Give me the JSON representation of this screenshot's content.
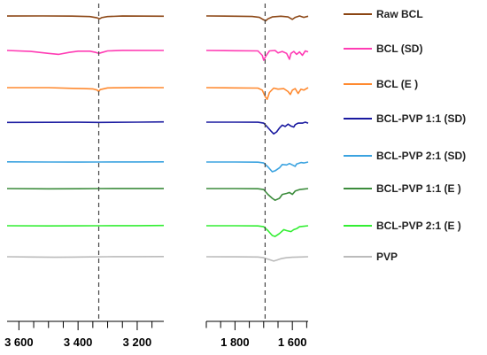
{
  "chart_data": [
    {
      "type": "line",
      "title": "",
      "xlabel": "",
      "ylabel": "",
      "x_reversed": true,
      "xlim": [
        3640,
        3110
      ],
      "x_ticks": [
        {
          "value": 3600,
          "label": "3 600"
        },
        {
          "value": 3400,
          "label": "3 400"
        },
        {
          "value": 3200,
          "label": "3 200"
        }
      ],
      "reference_line": {
        "x": 3330,
        "style": "dashed"
      },
      "grid": false,
      "series": [
        {
          "name": "Raw BCL",
          "color": "#8B4513",
          "points": [
            [
              3640,
              -0.2
            ],
            [
              3520,
              0
            ],
            [
              3420,
              -0.3
            ],
            [
              3360,
              -1.2
            ],
            [
              3335,
              -4
            ],
            [
              3328,
              -6
            ],
            [
              3320,
              -3.5
            ],
            [
              3300,
              -1.2
            ],
            [
              3250,
              -0.2
            ],
            [
              3110,
              -0.5
            ]
          ]
        },
        {
          "name": "BCL (SD)",
          "color": "#FF3CB4",
          "points": [
            [
              3640,
              0
            ],
            [
              3560,
              -2
            ],
            [
              3500,
              -6
            ],
            [
              3465,
              -8
            ],
            [
              3430,
              -4
            ],
            [
              3400,
              -1.5
            ],
            [
              3360,
              -1.5
            ],
            [
              3340,
              -4
            ],
            [
              3330,
              -6
            ],
            [
              3318,
              -4
            ],
            [
              3300,
              -1
            ],
            [
              3250,
              0.2
            ],
            [
              3110,
              0
            ]
          ]
        },
        {
          "name": "BCL (E )",
          "color": "#FF8A30",
          "points": [
            [
              3640,
              0
            ],
            [
              3500,
              0
            ],
            [
              3420,
              -1.5
            ],
            [
              3380,
              -2
            ],
            [
              3350,
              -2.5
            ],
            [
              3335,
              -5
            ],
            [
              3330,
              -8
            ],
            [
              3325,
              -4
            ],
            [
              3300,
              -0.6
            ],
            [
              3200,
              0.2
            ],
            [
              3110,
              0
            ]
          ]
        },
        {
          "name": "BCL-PVP 1:1 (SD)",
          "color": "#1A1AA0",
          "points": [
            [
              3640,
              -0.5
            ],
            [
              3500,
              -0.3
            ],
            [
              3400,
              -0.2
            ],
            [
              3330,
              -0.5
            ],
            [
              3200,
              0
            ],
            [
              3110,
              0.5
            ]
          ]
        },
        {
          "name": "BCL-PVP 2:1 (SD)",
          "color": "#3BA3E0",
          "points": [
            [
              3640,
              0.3
            ],
            [
              3500,
              0
            ],
            [
              3400,
              -0.2
            ],
            [
              3330,
              0
            ],
            [
              3200,
              0.1
            ],
            [
              3110,
              0.3
            ]
          ]
        },
        {
          "name": "BCL-PVP 1:1 (E )",
          "color": "#3C8C3C",
          "points": [
            [
              3640,
              0
            ],
            [
              3500,
              -0.5
            ],
            [
              3400,
              -0.3
            ],
            [
              3330,
              0
            ],
            [
              3200,
              0.2
            ],
            [
              3110,
              0.2
            ]
          ]
        },
        {
          "name": "BCL-PVP 2:1 (E )",
          "color": "#33EE33",
          "points": [
            [
              3640,
              0
            ],
            [
              3500,
              -0.3
            ],
            [
              3400,
              -0.2
            ],
            [
              3330,
              0
            ],
            [
              3200,
              0.2
            ],
            [
              3110,
              0.5
            ]
          ]
        },
        {
          "name": "PVP",
          "color": "#BBBBBB",
          "points": [
            [
              3640,
              0
            ],
            [
              3560,
              -0.6
            ],
            [
              3480,
              -1
            ],
            [
              3420,
              -0.8
            ],
            [
              3360,
              -0.3
            ],
            [
              3300,
              0
            ],
            [
              3200,
              0.2
            ],
            [
              3110,
              0.4
            ]
          ]
        }
      ]
    },
    {
      "type": "line",
      "title": "",
      "xlabel": "",
      "ylabel": "",
      "x_reversed": true,
      "xlim": [
        1900,
        1545
      ],
      "x_ticks": [
        {
          "value": 1800,
          "label": "1 800"
        },
        {
          "value": 1600,
          "label": "1 600"
        }
      ],
      "reference_line": {
        "x": 1695,
        "style": "dashed"
      },
      "grid": false,
      "series": [
        {
          "name": "Raw BCL",
          "color": "#8B4513",
          "points": [
            [
              1900,
              0
            ],
            [
              1800,
              -0.5
            ],
            [
              1740,
              -1
            ],
            [
              1715,
              -3
            ],
            [
              1700,
              -8
            ],
            [
              1693,
              -10
            ],
            [
              1685,
              -6
            ],
            [
              1670,
              -2
            ],
            [
              1640,
              -0.5
            ],
            [
              1615,
              -2
            ],
            [
              1600,
              -7
            ],
            [
              1590,
              -3
            ],
            [
              1575,
              0
            ],
            [
              1560,
              -3
            ],
            [
              1545,
              -0.5
            ]
          ]
        },
        {
          "name": "BCL (SD)",
          "color": "#FF3CB4",
          "points": [
            [
              1900,
              0
            ],
            [
              1800,
              -0.5
            ],
            [
              1720,
              -1
            ],
            [
              1705,
              -10
            ],
            [
              1700,
              -20
            ],
            [
              1693,
              -12
            ],
            [
              1680,
              -1
            ],
            [
              1660,
              0
            ],
            [
              1650,
              -5
            ],
            [
              1635,
              -2
            ],
            [
              1620,
              -6
            ],
            [
              1610,
              -18
            ],
            [
              1605,
              -6
            ],
            [
              1595,
              -2
            ],
            [
              1585,
              -8
            ],
            [
              1575,
              -3
            ],
            [
              1565,
              -10
            ],
            [
              1555,
              -1
            ],
            [
              1545,
              -3
            ]
          ]
        },
        {
          "name": "BCL (E )",
          "color": "#FF8A30",
          "points": [
            [
              1900,
              0
            ],
            [
              1800,
              -0.5
            ],
            [
              1720,
              -1
            ],
            [
              1705,
              -5
            ],
            [
              1695,
              -18
            ],
            [
              1688,
              -24
            ],
            [
              1680,
              -10
            ],
            [
              1665,
              -1
            ],
            [
              1650,
              -3
            ],
            [
              1630,
              -2
            ],
            [
              1615,
              -8
            ],
            [
              1607,
              -14
            ],
            [
              1600,
              -5
            ],
            [
              1590,
              -2
            ],
            [
              1580,
              -12
            ],
            [
              1570,
              -3
            ],
            [
              1560,
              -5
            ],
            [
              1545,
              0
            ]
          ]
        },
        {
          "name": "BCL-PVP 1:1 (SD)",
          "color": "#1A1AA0",
          "points": [
            [
              1900,
              0
            ],
            [
              1800,
              0
            ],
            [
              1720,
              -0.2
            ],
            [
              1700,
              -2
            ],
            [
              1690,
              -8
            ],
            [
              1675,
              -18
            ],
            [
              1665,
              -24
            ],
            [
              1655,
              -20
            ],
            [
              1645,
              -12
            ],
            [
              1635,
              -6
            ],
            [
              1625,
              -9
            ],
            [
              1615,
              -4
            ],
            [
              1605,
              -8
            ],
            [
              1595,
              -10
            ],
            [
              1590,
              -5
            ],
            [
              1580,
              -2
            ],
            [
              1565,
              -2
            ],
            [
              1555,
              0
            ],
            [
              1545,
              -2
            ]
          ]
        },
        {
          "name": "BCL-PVP 2:1 (SD)",
          "color": "#3BA3E0",
          "points": [
            [
              1900,
              0
            ],
            [
              1800,
              0
            ],
            [
              1720,
              -0.3
            ],
            [
              1700,
              -2
            ],
            [
              1685,
              -10
            ],
            [
              1670,
              -20
            ],
            [
              1660,
              -18
            ],
            [
              1645,
              -12
            ],
            [
              1635,
              -5
            ],
            [
              1620,
              -6
            ],
            [
              1610,
              -3
            ],
            [
              1600,
              -6
            ],
            [
              1590,
              -9
            ],
            [
              1585,
              -4
            ],
            [
              1570,
              -1
            ],
            [
              1560,
              -2
            ],
            [
              1545,
              0
            ]
          ]
        },
        {
          "name": "BCL-PVP 1:1 (E )",
          "color": "#3C8C3C",
          "points": [
            [
              1900,
              0
            ],
            [
              1800,
              0
            ],
            [
              1720,
              -0.3
            ],
            [
              1700,
              -2
            ],
            [
              1685,
              -12
            ],
            [
              1670,
              -20
            ],
            [
              1660,
              -24
            ],
            [
              1645,
              -20
            ],
            [
              1635,
              -12
            ],
            [
              1620,
              -10
            ],
            [
              1610,
              -8
            ],
            [
              1600,
              -12
            ],
            [
              1590,
              -5
            ],
            [
              1575,
              -2
            ],
            [
              1560,
              -1
            ],
            [
              1545,
              0
            ]
          ]
        },
        {
          "name": "BCL-PVP 2:1 (E )",
          "color": "#33EE33",
          "points": [
            [
              1900,
              0
            ],
            [
              1800,
              0
            ],
            [
              1720,
              -0.3
            ],
            [
              1700,
              -2
            ],
            [
              1685,
              -10
            ],
            [
              1670,
              -20
            ],
            [
              1660,
              -22
            ],
            [
              1645,
              -16
            ],
            [
              1630,
              -8
            ],
            [
              1620,
              -10
            ],
            [
              1605,
              -12
            ],
            [
              1595,
              -8
            ],
            [
              1585,
              -6
            ],
            [
              1575,
              -2
            ],
            [
              1560,
              -1
            ],
            [
              1545,
              0
            ]
          ]
        },
        {
          "name": "PVP",
          "color": "#BBBBBB",
          "points": [
            [
              1900,
              0
            ],
            [
              1800,
              -0.2
            ],
            [
              1720,
              -0.5
            ],
            [
              1700,
              -2
            ],
            [
              1690,
              -4
            ],
            [
              1680,
              -6
            ],
            [
              1665,
              -9
            ],
            [
              1655,
              -7
            ],
            [
              1640,
              -4
            ],
            [
              1620,
              -2
            ],
            [
              1600,
              -1
            ],
            [
              1560,
              -0.3
            ],
            [
              1545,
              0
            ]
          ]
        }
      ]
    }
  ],
  "legend": {
    "placement": "right",
    "entries": [
      {
        "label": "Raw BCL",
        "color": "#8B4513"
      },
      {
        "label": "BCL (SD)",
        "color": "#FF3CB4"
      },
      {
        "label": "BCL (E )",
        "color": "#FF8A30"
      },
      {
        "label": "BCL-PVP 1:1 (SD)",
        "color": "#1A1AA0"
      },
      {
        "label": "BCL-PVP 2:1 (SD)",
        "color": "#3BA3E0"
      },
      {
        "label": "BCL-PVP 1:1 (E )",
        "color": "#3C8C3C"
      },
      {
        "label": "BCL-PVP 2:1 (E )",
        "color": "#33EE33"
      },
      {
        "label": "PVP",
        "color": "#BBBBBB"
      }
    ]
  }
}
